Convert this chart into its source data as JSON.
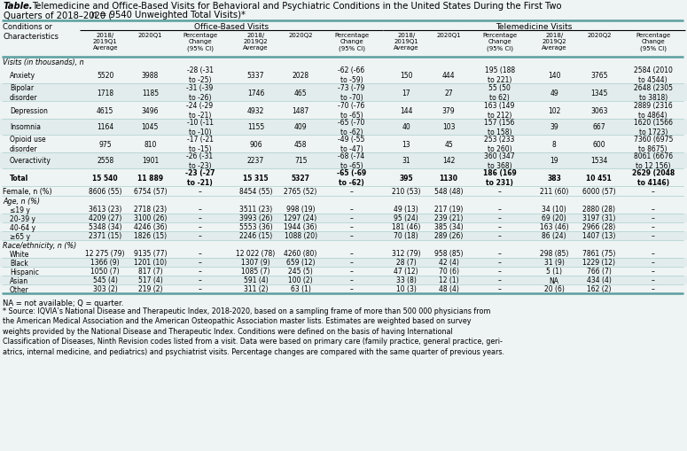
{
  "bg_color": "#eef3f3",
  "teal_line": "#5b9ea0",
  "thin_line": "#aacfcf",
  "sections": [
    {
      "header": "Visits (in thousands), n",
      "rows": [
        {
          "label": "Anxiety",
          "indent": true,
          "bold": false,
          "data": [
            "5520",
            "3988",
            "-28 (-31\nto -25)",
            "5337",
            "2028",
            "-62 (-66\nto -59)",
            "150",
            "444",
            "195 (188\nto 221)",
            "140",
            "3765",
            "2584 (2010\nto 4544)"
          ]
        },
        {
          "label": "Bipolar\ndisorder",
          "indent": true,
          "bold": false,
          "data": [
            "1718",
            "1185",
            "-31 (-39\nto -26)",
            "1746",
            "465",
            "-73 (-79\nto -70)",
            "17",
            "27",
            "55 (50\nto 62)",
            "49",
            "1345",
            "2648 (2305\nto 3818)"
          ]
        },
        {
          "label": "Depression",
          "indent": true,
          "bold": false,
          "data": [
            "4615",
            "3496",
            "-24 (-29\nto -21)",
            "4932",
            "1487",
            "-70 (-76\nto -65)",
            "144",
            "379",
            "163 (149\nto 212)",
            "102",
            "3063",
            "2889 (2316\nto 4864)"
          ]
        },
        {
          "label": "Insomnia",
          "indent": true,
          "bold": false,
          "data": [
            "1164",
            "1045",
            "-10 (-11\nto -10)",
            "1155",
            "409",
            "-65 (-70\nto -62)",
            "40",
            "103",
            "157 (156\nto 158)",
            "39",
            "667",
            "1620 (1566\nto 1723)"
          ]
        },
        {
          "label": "Opioid use\ndisorder",
          "indent": true,
          "bold": false,
          "data": [
            "975",
            "810",
            "-17 (-21\nto -15)",
            "906",
            "458",
            "-49 (-55\nto -47)",
            "13",
            "45",
            "253 (233\nto 260)",
            "8",
            "600",
            "7360 (6975\nto 8675)"
          ]
        },
        {
          "label": "Overactivity",
          "indent": true,
          "bold": false,
          "data": [
            "2558",
            "1901",
            "-26 (-31\nto -23)",
            "2237",
            "715",
            "-68 (-74\nto -65)",
            "31",
            "142",
            "360 (347\nto 368)",
            "19",
            "1534",
            "8061 (6676\nto 12 156)"
          ]
        },
        {
          "label": "Total",
          "indent": true,
          "bold": true,
          "data": [
            "15 540",
            "11 889",
            "-23 (-27\nto -21)",
            "15 315",
            "5327",
            "-65 (-69\nto -62)",
            "395",
            "1130",
            "186 (169\nto 231)",
            "383",
            "10 451",
            "2629 (2048\nto 4146)"
          ]
        }
      ]
    },
    {
      "header": "Female, n (%)",
      "header_is_row": true,
      "rows": [
        {
          "label": "",
          "indent": false,
          "bold": false,
          "data": [
            "8606 (55)",
            "6754 (57)",
            "–",
            "8454 (55)",
            "2765 (52)",
            "–",
            "210 (53)",
            "548 (48)",
            "–",
            "211 (60)",
            "6000 (57)",
            "–"
          ]
        }
      ]
    },
    {
      "header": "Age, n (%)",
      "rows": [
        {
          "label": "≤19 y",
          "indent": true,
          "bold": false,
          "data": [
            "3613 (23)",
            "2718 (23)",
            "–",
            "3511 (23)",
            "998 (19)",
            "–",
            "49 (13)",
            "217 (19)",
            "–",
            "34 (10)",
            "2880 (28)",
            "–"
          ]
        },
        {
          "label": "20-39 y",
          "indent": true,
          "bold": false,
          "data": [
            "4209 (27)",
            "3100 (26)",
            "–",
            "3993 (26)",
            "1297 (24)",
            "–",
            "95 (24)",
            "239 (21)",
            "–",
            "69 (20)",
            "3197 (31)",
            "–"
          ]
        },
        {
          "label": "40-64 y",
          "indent": true,
          "bold": false,
          "data": [
            "5348 (34)",
            "4246 (36)",
            "–",
            "5553 (36)",
            "1944 (36)",
            "–",
            "181 (46)",
            "385 (34)",
            "–",
            "163 (46)",
            "2966 (28)",
            "–"
          ]
        },
        {
          "label": "≥65 y",
          "indent": true,
          "bold": false,
          "data": [
            "2371 (15)",
            "1826 (15)",
            "–",
            "2246 (15)",
            "1088 (20)",
            "–",
            "70 (18)",
            "289 (26)",
            "–",
            "86 (24)",
            "1407 (13)",
            "–"
          ]
        }
      ]
    },
    {
      "header": "Race/ethnicity, n (%)",
      "rows": [
        {
          "label": "White",
          "indent": true,
          "bold": false,
          "data": [
            "12 275 (79)",
            "9135 (77)",
            "–",
            "12 022 (78)",
            "4260 (80)",
            "–",
            "312 (79)",
            "958 (85)",
            "–",
            "298 (85)",
            "7861 (75)",
            "–"
          ]
        },
        {
          "label": "Black",
          "indent": true,
          "bold": false,
          "data": [
            "1366 (9)",
            "1201 (10)",
            "–",
            "1307 (9)",
            "659 (12)",
            "–",
            "28 (7)",
            "42 (4)",
            "–",
            "31 (9)",
            "1229 (12)",
            "–"
          ]
        },
        {
          "label": "Hispanic",
          "indent": true,
          "bold": false,
          "data": [
            "1050 (7)",
            "817 (7)",
            "–",
            "1085 (7)",
            "245 (5)",
            "–",
            "47 (12)",
            "70 (6)",
            "–",
            "5 (1)",
            "766 (7)",
            "–"
          ]
        },
        {
          "label": "Asian",
          "indent": true,
          "bold": false,
          "data": [
            "545 (4)",
            "517 (4)",
            "–",
            "591 (4)",
            "100 (2)",
            "–",
            "33 (8)",
            "12 (1)",
            "–",
            "NA",
            "434 (4)",
            "–"
          ]
        },
        {
          "label": "Other",
          "indent": true,
          "bold": false,
          "data": [
            "303 (2)",
            "219 (2)",
            "–",
            "311 (2)",
            "63 (1)",
            "–",
            "10 (3)",
            "48 (4)",
            "–",
            "20 (6)",
            "162 (2)",
            "–"
          ]
        }
      ]
    }
  ],
  "footnote1": "NA = not available; Q = quarter.",
  "footnote2": "* Source: IQVIA’s National Disease and Therapeutic Index, 2018-2020, based on a sampling frame of more than 500 000 physicians from\nthe American Medical Association and the American Osteopathic Association master lists. Estimates are weighted based on survey\nweights provided by the National Disease and Therapeutic Index. Conditions were defined on the basis of having International\nClassification of Diseases, Ninth Revision codes listed from a visit. Data were based on primary care (family practice, general practice, geri-\natrics, internal medicine, and pediatrics) and psychiatrist visits. Percentage changes are compared with the same quarter of previous years."
}
